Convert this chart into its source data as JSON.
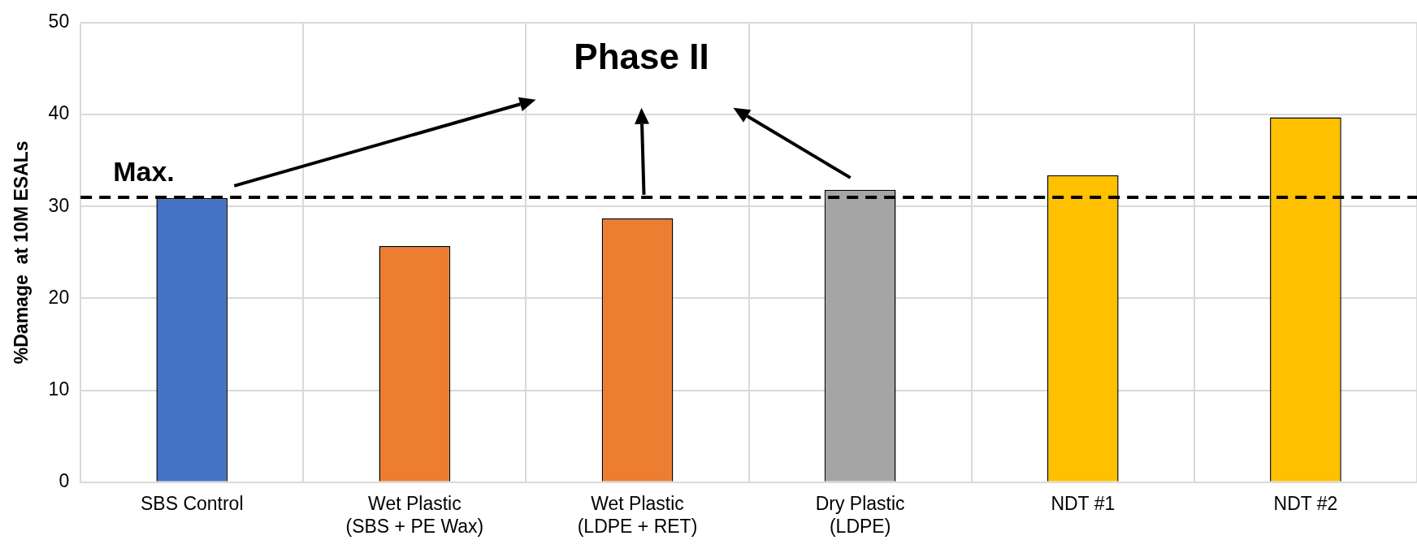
{
  "chart_data": {
    "type": "bar",
    "ylabel": "%Damage  at 10M ESALs",
    "categories": [
      "SBS Control",
      "Wet Plastic (SBS + PE Wax)",
      "Wet Plastic (LDPE + RET)",
      "Dry Plastic (LDPE)",
      "NDT #1",
      "NDT #2"
    ],
    "values": [
      30.9,
      25.7,
      28.7,
      31.8,
      33.4,
      39.7
    ],
    "colors": [
      "#4472c4",
      "#ed7d31",
      "#ed7d31",
      "#a5a5a5",
      "#ffc000",
      "#ffc000"
    ],
    "ylim": [
      0,
      50
    ],
    "yticks": [
      0,
      10,
      20,
      30,
      40,
      50
    ],
    "grid": true,
    "ref_lines": [
      {
        "axis": "y",
        "value": 31,
        "label": "Max.",
        "color": "#000000",
        "line_style": "dashed"
      }
    ],
    "annotations": [
      "Phase II"
    ]
  }
}
